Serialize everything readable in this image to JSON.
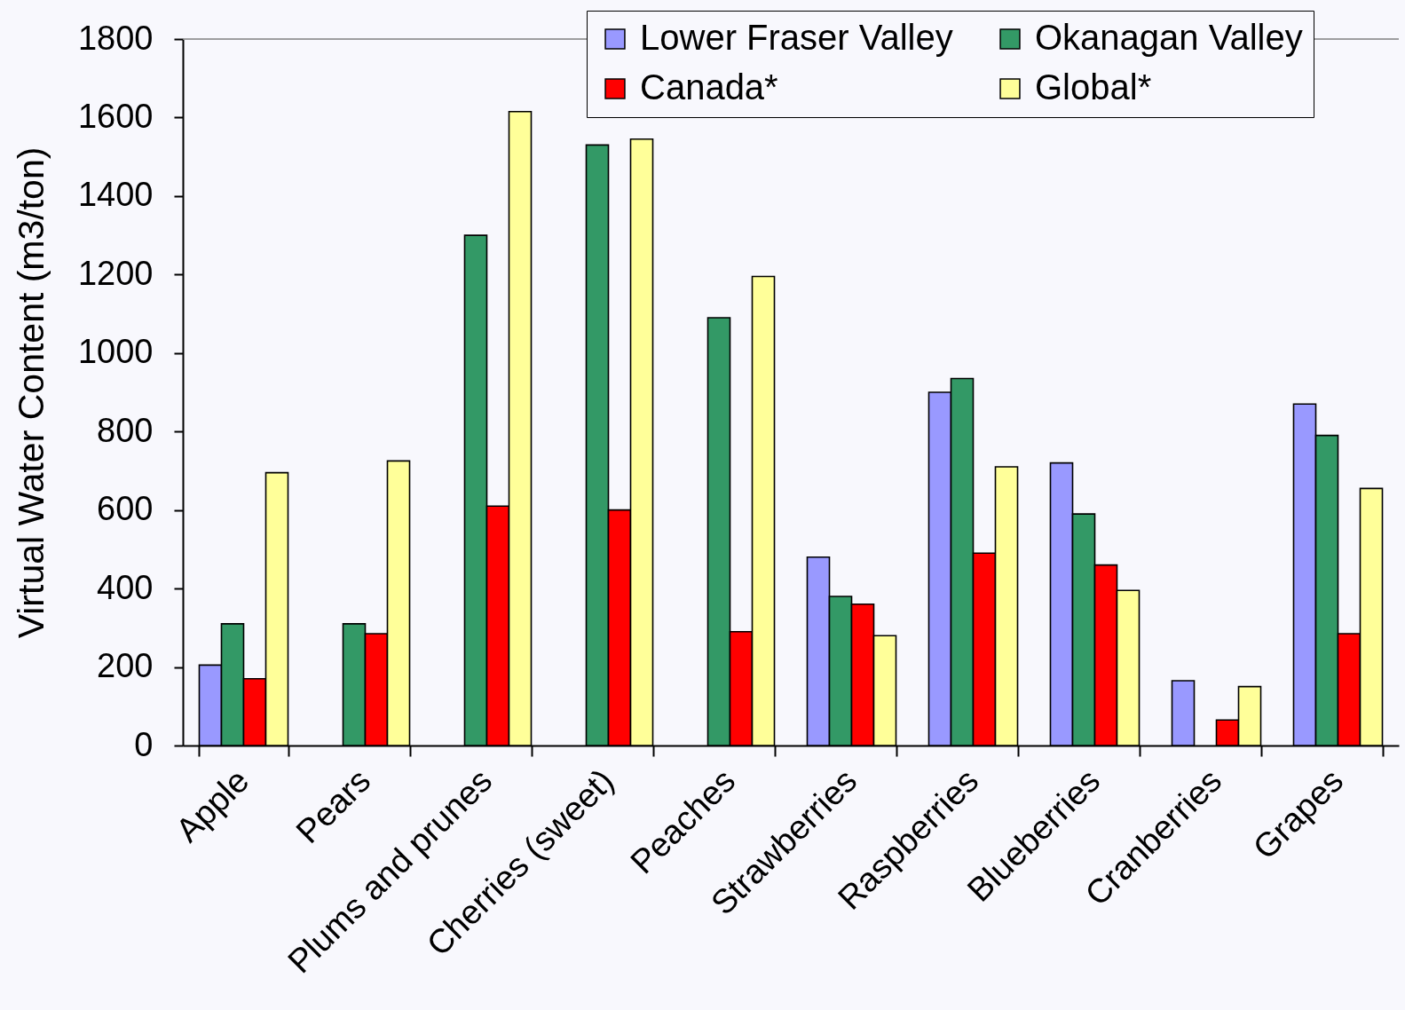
{
  "chart_data": {
    "type": "bar",
    "ylabel": "Virtual Water Content (m3/ton)",
    "categories": [
      "Apple",
      "Pears",
      "Plums and prunes",
      "Cherries (sweet)",
      "Peaches",
      "Strawberries",
      "Raspberries",
      "Blueberries",
      "Cranberries",
      "Grapes"
    ],
    "series": [
      {
        "name": "Lower Fraser Valley",
        "color": "#9999ff",
        "values": [
          205,
          null,
          null,
          null,
          null,
          480,
          900,
          720,
          165,
          870
        ]
      },
      {
        "name": "Okanagan Valley",
        "color": "#339966",
        "values": [
          310,
          310,
          1300,
          1530,
          1090,
          380,
          935,
          590,
          null,
          790
        ]
      },
      {
        "name": "Canada*",
        "color": "#ff0000",
        "values": [
          170,
          285,
          610,
          600,
          290,
          360,
          490,
          460,
          65,
          285
        ]
      },
      {
        "name": "Global*",
        "color": "#ffff99",
        "values": [
          695,
          725,
          1615,
          1545,
          1195,
          280,
          710,
          395,
          150,
          655
        ]
      }
    ],
    "ylim": [
      0,
      1800
    ],
    "yticks": [
      0,
      200,
      400,
      600,
      800,
      1000,
      1200,
      1400,
      1600,
      1800
    ],
    "legend": "top right"
  }
}
